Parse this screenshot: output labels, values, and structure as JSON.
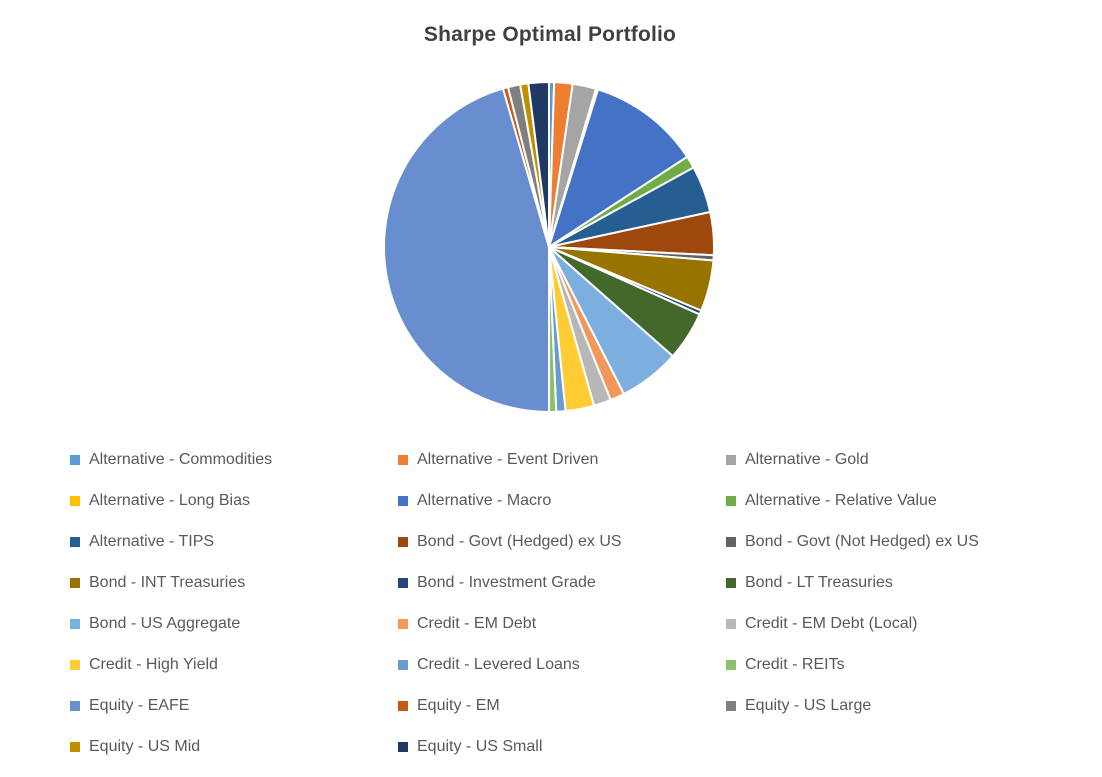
{
  "title": "Sharpe Optimal Portfolio",
  "chart_data": {
    "type": "pie",
    "title": "Sharpe Optimal Portfolio",
    "legend_position": "bottom",
    "start_angle_deg": 0,
    "direction": "clockwise",
    "slice_border_color": "#ffffff",
    "slices": [
      {
        "label": "Alternative - Commodities",
        "value": 0.5,
        "color": "#5B9BD5"
      },
      {
        "label": "Alternative - Event Driven",
        "value": 1.8,
        "color": "#ED7D31"
      },
      {
        "label": "Alternative - Gold",
        "value": 2.3,
        "color": "#A5A5A5"
      },
      {
        "label": "Alternative - Long Bias",
        "value": 0.2,
        "color": "#FFC000"
      },
      {
        "label": "Alternative - Macro",
        "value": 11.0,
        "color": "#4472C4"
      },
      {
        "label": "Alternative - Relative Value",
        "value": 1.2,
        "color": "#70AD47"
      },
      {
        "label": "Alternative - TIPS",
        "value": 4.6,
        "color": "#255E91"
      },
      {
        "label": "Bond - Govt (Hedged) ex US",
        "value": 4.2,
        "color": "#9E480E"
      },
      {
        "label": "Bond - Govt (Not Hedged) ex US",
        "value": 0.5,
        "color": "#636363"
      },
      {
        "label": "Bond - INT Treasuries",
        "value": 5.0,
        "color": "#997300"
      },
      {
        "label": "Bond - Investment Grade",
        "value": 0.4,
        "color": "#264478"
      },
      {
        "label": "Bond - LT Treasuries",
        "value": 4.8,
        "color": "#43682B"
      },
      {
        "label": "Bond - US Aggregate",
        "value": 6.0,
        "color": "#7CAFDD"
      },
      {
        "label": "Credit - EM Debt",
        "value": 1.4,
        "color": "#F1975A"
      },
      {
        "label": "Credit - EM Debt (Local)",
        "value": 1.7,
        "color": "#B7B7B7"
      },
      {
        "label": "Credit - High Yield",
        "value": 2.8,
        "color": "#FFCD33"
      },
      {
        "label": "Credit - Levered Loans",
        "value": 0.9,
        "color": "#699BD2"
      },
      {
        "label": "Credit - REITs",
        "value": 0.7,
        "color": "#8CC168"
      },
      {
        "label": "Equity - EAFE",
        "value": 45.5,
        "color": "#698ED0"
      },
      {
        "label": "Equity - EM",
        "value": 0.5,
        "color": "#C55A11"
      },
      {
        "label": "Equity - US Large",
        "value": 1.2,
        "color": "#7F7F7F"
      },
      {
        "label": "Equity - US Mid",
        "value": 0.8,
        "color": "#BF8F00"
      },
      {
        "label": "Equity - US Small",
        "value": 2.0,
        "color": "#1F3864"
      }
    ]
  }
}
